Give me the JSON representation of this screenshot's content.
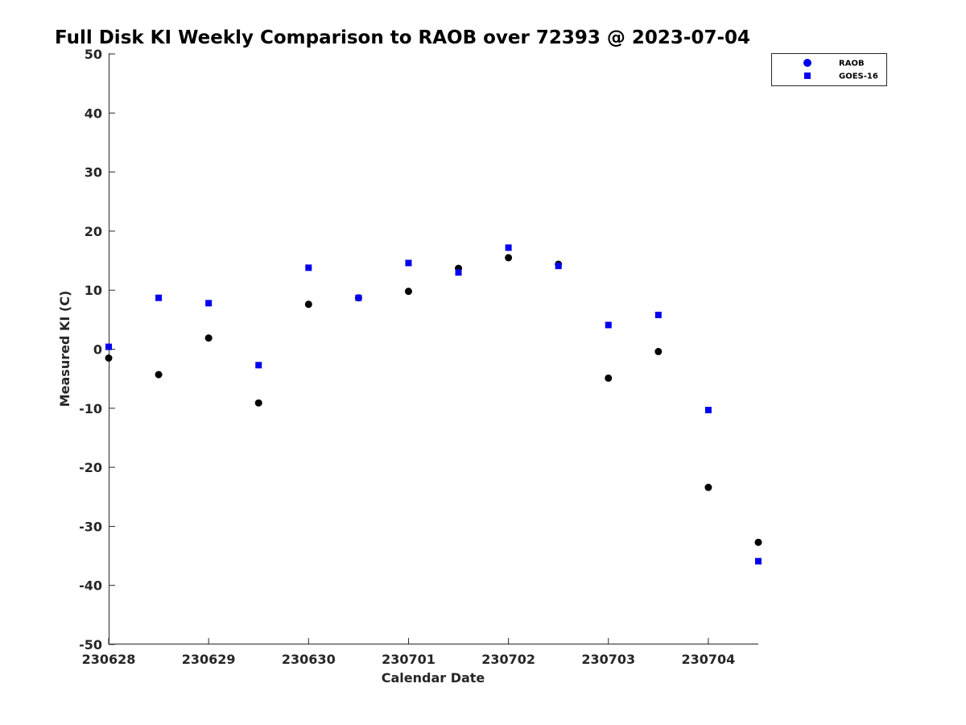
{
  "chart_data": {
    "type": "scatter",
    "title": "Full Disk KI Weekly Comparison to RAOB over 72393 @ 2023-07-04",
    "xlabel": "Calendar Date",
    "ylabel": "Measured KI (C)",
    "xlim": [
      0,
      6.5
    ],
    "ylim": [
      -50,
      50
    ],
    "xticks": [
      0,
      1,
      2,
      3,
      4,
      5,
      6
    ],
    "xtick_labels": [
      "230628",
      "230629",
      "230630",
      "230701",
      "230702",
      "230703",
      "230704"
    ],
    "yticks": [
      50,
      40,
      30,
      20,
      10,
      0,
      -10,
      -20,
      -30,
      -40,
      -50
    ],
    "ytick_labels": [
      "50",
      "40",
      "30",
      "20",
      "10",
      "0",
      "-10",
      "-20",
      "-30",
      "-40",
      "-50"
    ],
    "grid": false,
    "legend_position": "top-right",
    "x": [
      0,
      0.5,
      1,
      1.5,
      2,
      2.5,
      3,
      3.5,
      4,
      4.5,
      5,
      5.5,
      6,
      6.5
    ],
    "series": [
      {
        "name": "RAOB",
        "marker": "circle",
        "color": "#000000",
        "values": [
          -1.5,
          -4.3,
          1.9,
          -9.1,
          7.6,
          8.7,
          9.8,
          13.7,
          15.5,
          14.4,
          -4.9,
          -0.4,
          -23.4,
          -32.7
        ]
      },
      {
        "name": "GOES-16",
        "marker": "square",
        "color": "#0000ee",
        "values": [
          0.4,
          8.7,
          7.8,
          -2.7,
          13.8,
          8.7,
          14.6,
          13.0,
          17.2,
          14.1,
          4.1,
          5.8,
          -10.3,
          -35.9
        ]
      }
    ]
  }
}
